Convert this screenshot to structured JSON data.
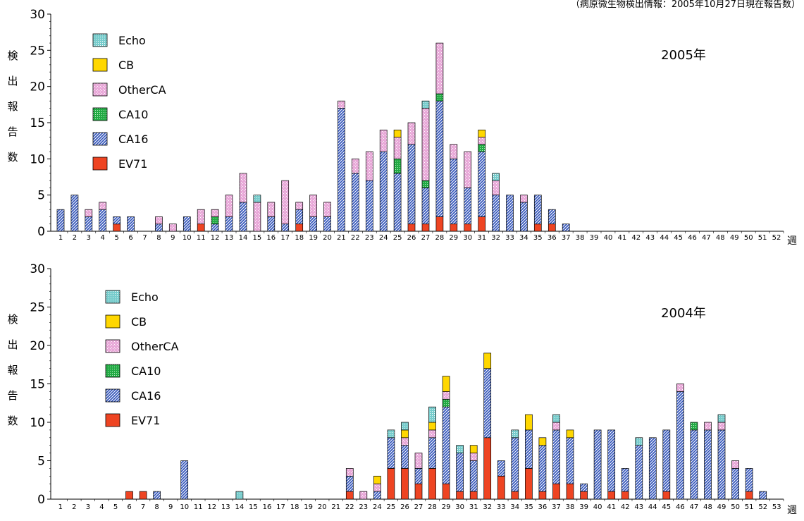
{
  "source_note": "（病原微生物検出情報：2005年10月27日現在報告数）",
  "legend_colors": {
    "EV71": "#ee4422",
    "CA16": "#3355bb",
    "CA10": "#22aa44",
    "OtherCA": "#e8a8d8",
    "CB": "#ffd700",
    "Echo": "#77cccc"
  },
  "chart_data": [
    {
      "type": "bar",
      "stacked": true,
      "title": "2005年",
      "ylabel": "検出報告数",
      "xlabel": "週",
      "ylim": [
        0,
        30
      ],
      "yticks": [
        0,
        5,
        10,
        15,
        20,
        25,
        30
      ],
      "categories": [
        "1",
        "2",
        "3",
        "4",
        "5",
        "6",
        "7",
        "8",
        "9",
        "10",
        "11",
        "12",
        "13",
        "14",
        "15",
        "16",
        "17",
        "18",
        "19",
        "20",
        "21",
        "22",
        "23",
        "24",
        "25",
        "26",
        "27",
        "28",
        "29",
        "30",
        "31",
        "32",
        "33",
        "34",
        "35",
        "36",
        "37",
        "38",
        "39",
        "40",
        "41",
        "42",
        "43",
        "44",
        "45",
        "46",
        "47",
        "48",
        "49",
        "50",
        "51",
        "52"
      ],
      "legend": [
        "Echo",
        "CB",
        "OtherCA",
        "CA10",
        "CA16",
        "EV71"
      ],
      "series": [
        {
          "name": "EV71",
          "values": [
            0,
            0,
            0,
            0,
            1,
            0,
            0,
            0,
            0,
            0,
            1,
            0,
            0,
            0,
            0,
            0,
            0,
            1,
            0,
            0,
            0,
            0,
            0,
            0,
            0,
            1,
            1,
            2,
            1,
            1,
            2,
            0,
            0,
            0,
            1,
            1,
            0,
            0,
            0,
            0,
            0,
            0,
            0,
            0,
            0,
            0,
            0,
            0,
            0,
            0,
            0,
            0
          ]
        },
        {
          "name": "CA16",
          "values": [
            3,
            5,
            2,
            3,
            1,
            2,
            0,
            1,
            0,
            2,
            0,
            1,
            2,
            4,
            0,
            2,
            1,
            2,
            2,
            2,
            17,
            8,
            7,
            11,
            8,
            11,
            5,
            16,
            9,
            5,
            9,
            5,
            5,
            4,
            4,
            2,
            1,
            0,
            0,
            0,
            0,
            0,
            0,
            0,
            0,
            0,
            0,
            0,
            0,
            0,
            0,
            0
          ]
        },
        {
          "name": "CA10",
          "values": [
            0,
            0,
            0,
            0,
            0,
            0,
            0,
            0,
            0,
            0,
            0,
            1,
            0,
            0,
            0,
            0,
            0,
            0,
            0,
            0,
            0,
            0,
            0,
            0,
            2,
            0,
            1,
            1,
            0,
            0,
            1,
            0,
            0,
            0,
            0,
            0,
            0,
            0,
            0,
            0,
            0,
            0,
            0,
            0,
            0,
            0,
            0,
            0,
            0,
            0,
            0,
            0
          ]
        },
        {
          "name": "OtherCA",
          "values": [
            0,
            0,
            1,
            1,
            0,
            0,
            0,
            1,
            1,
            0,
            2,
            1,
            3,
            4,
            4,
            2,
            6,
            1,
            3,
            2,
            1,
            2,
            4,
            3,
            3,
            3,
            10,
            7,
            2,
            5,
            1,
            2,
            0,
            1,
            0,
            0,
            0,
            0,
            0,
            0,
            0,
            0,
            0,
            0,
            0,
            0,
            0,
            0,
            0,
            0,
            0,
            0
          ]
        },
        {
          "name": "CB",
          "values": [
            0,
            0,
            0,
            0,
            0,
            0,
            0,
            0,
            0,
            0,
            0,
            0,
            0,
            0,
            0,
            0,
            0,
            0,
            0,
            0,
            0,
            0,
            0,
            0,
            1,
            0,
            0,
            0,
            0,
            0,
            1,
            0,
            0,
            0,
            0,
            0,
            0,
            0,
            0,
            0,
            0,
            0,
            0,
            0,
            0,
            0,
            0,
            0,
            0,
            0,
            0,
            0
          ]
        },
        {
          "name": "Echo",
          "values": [
            0,
            0,
            0,
            0,
            0,
            0,
            0,
            0,
            0,
            0,
            0,
            0,
            0,
            0,
            1,
            0,
            0,
            0,
            0,
            0,
            0,
            0,
            0,
            0,
            0,
            0,
            1,
            0,
            0,
            0,
            0,
            1,
            0,
            0,
            0,
            0,
            0,
            0,
            0,
            0,
            0,
            0,
            0,
            0,
            0,
            0,
            0,
            0,
            0,
            0,
            0,
            0
          ]
        }
      ]
    },
    {
      "type": "bar",
      "stacked": true,
      "title": "2004年",
      "ylabel": "検出報告数",
      "xlabel": "週",
      "ylim": [
        0,
        30
      ],
      "yticks": [
        0,
        5,
        10,
        15,
        20,
        25,
        30
      ],
      "categories": [
        "1",
        "2",
        "3",
        "4",
        "5",
        "6",
        "7",
        "8",
        "9",
        "10",
        "11",
        "12",
        "13",
        "14",
        "15",
        "16",
        "17",
        "18",
        "19",
        "20",
        "21",
        "22",
        "23",
        "24",
        "25",
        "26",
        "27",
        "28",
        "29",
        "30",
        "31",
        "32",
        "33",
        "34",
        "35",
        "36",
        "37",
        "38",
        "39",
        "40",
        "41",
        "42",
        "43",
        "44",
        "45",
        "46",
        "47",
        "48",
        "49",
        "50",
        "51",
        "52",
        "53"
      ],
      "legend": [
        "Echo",
        "CB",
        "OtherCA",
        "CA10",
        "CA16",
        "EV71"
      ],
      "series": [
        {
          "name": "EV71",
          "values": [
            0,
            0,
            0,
            0,
            0,
            1,
            1,
            0,
            0,
            0,
            0,
            0,
            0,
            0,
            0,
            0,
            0,
            0,
            0,
            0,
            0,
            1,
            0,
            0,
            4,
            4,
            2,
            4,
            2,
            1,
            1,
            8,
            3,
            1,
            4,
            1,
            2,
            2,
            1,
            0,
            1,
            1,
            0,
            0,
            1,
            0,
            0,
            0,
            0,
            0,
            1,
            0,
            0
          ]
        },
        {
          "name": "CA16",
          "values": [
            0,
            0,
            0,
            0,
            0,
            0,
            0,
            1,
            0,
            5,
            0,
            0,
            0,
            0,
            0,
            0,
            0,
            0,
            0,
            0,
            0,
            2,
            0,
            1,
            4,
            3,
            2,
            4,
            10,
            5,
            4,
            9,
            2,
            7,
            5,
            6,
            7,
            6,
            1,
            9,
            8,
            3,
            7,
            8,
            8,
            14,
            9,
            9,
            9,
            4,
            3,
            1,
            0
          ]
        },
        {
          "name": "CA10",
          "values": [
            0,
            0,
            0,
            0,
            0,
            0,
            0,
            0,
            0,
            0,
            0,
            0,
            0,
            0,
            0,
            0,
            0,
            0,
            0,
            0,
            0,
            0,
            0,
            0,
            0,
            0,
            0,
            0,
            1,
            0,
            0,
            0,
            0,
            0,
            0,
            0,
            0,
            0,
            0,
            0,
            0,
            0,
            0,
            0,
            0,
            0,
            1,
            0,
            0,
            0,
            0,
            0,
            0
          ]
        },
        {
          "name": "OtherCA",
          "values": [
            0,
            0,
            0,
            0,
            0,
            0,
            0,
            0,
            0,
            0,
            0,
            0,
            0,
            0,
            0,
            0,
            0,
            0,
            0,
            0,
            0,
            1,
            1,
            1,
            0,
            1,
            2,
            1,
            1,
            0,
            1,
            0,
            0,
            0,
            0,
            0,
            1,
            0,
            0,
            0,
            0,
            0,
            0,
            0,
            0,
            1,
            0,
            1,
            1,
            1,
            0,
            0,
            0
          ]
        },
        {
          "name": "CB",
          "values": [
            0,
            0,
            0,
            0,
            0,
            0,
            0,
            0,
            0,
            0,
            0,
            0,
            0,
            0,
            0,
            0,
            0,
            0,
            0,
            0,
            0,
            0,
            0,
            1,
            0,
            1,
            0,
            1,
            2,
            0,
            1,
            2,
            0,
            0,
            2,
            1,
            0,
            1,
            0,
            0,
            0,
            0,
            0,
            0,
            0,
            0,
            0,
            0,
            0,
            0,
            0,
            0,
            0
          ]
        },
        {
          "name": "Echo",
          "values": [
            0,
            0,
            0,
            0,
            0,
            0,
            0,
            0,
            0,
            0,
            0,
            0,
            0,
            1,
            0,
            0,
            0,
            0,
            0,
            0,
            0,
            0,
            0,
            0,
            1,
            1,
            0,
            2,
            0,
            1,
            0,
            0,
            0,
            1,
            0,
            0,
            1,
            0,
            0,
            0,
            0,
            0,
            1,
            0,
            0,
            0,
            0,
            0,
            1,
            0,
            0,
            0,
            0
          ]
        }
      ]
    }
  ]
}
